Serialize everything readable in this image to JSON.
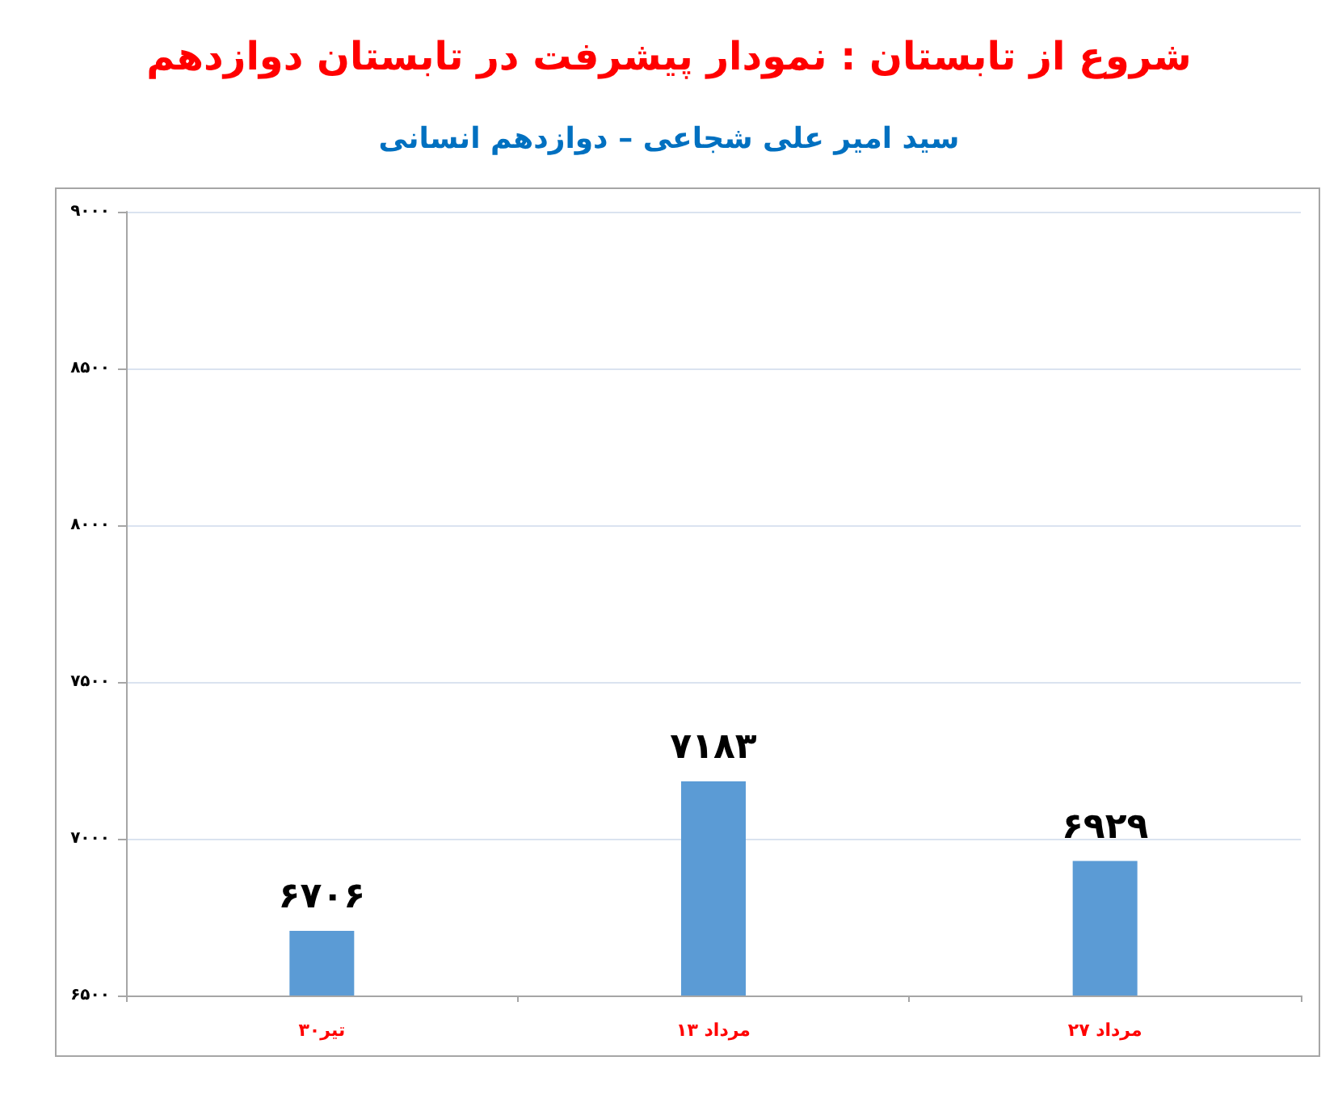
{
  "chart_data": {
    "type": "bar",
    "title": "شروع از تابستان : نمودار پیشرفت در تابستان دوازدهم",
    "subtitle": "سید امیر علی شجاعی – دوازدهم انسانی",
    "categories": [
      "۳۰تیر",
      "۱۳ مرداد",
      "۲۷ مرداد"
    ],
    "values": [
      6706,
      7183,
      6929
    ],
    "color": "#5b9bd5",
    "value_labels": [
      "۶۷۰۶",
      "۷۱۸۳",
      "۶۹۲۹"
    ],
    "ylim": [
      6500,
      9000
    ],
    "yticks": [
      {
        "value": 6500,
        "label": "۶۵۰۰"
      },
      {
        "value": 7000,
        "label": "۷۰۰۰"
      },
      {
        "value": 7500,
        "label": "۷۵۰۰"
      },
      {
        "value": 8000,
        "label": "۸۰۰۰"
      },
      {
        "value": 8500,
        "label": "۸۵۰۰"
      },
      {
        "value": 9000,
        "label": "۹۰۰۰"
      }
    ],
    "grid": "y"
  }
}
